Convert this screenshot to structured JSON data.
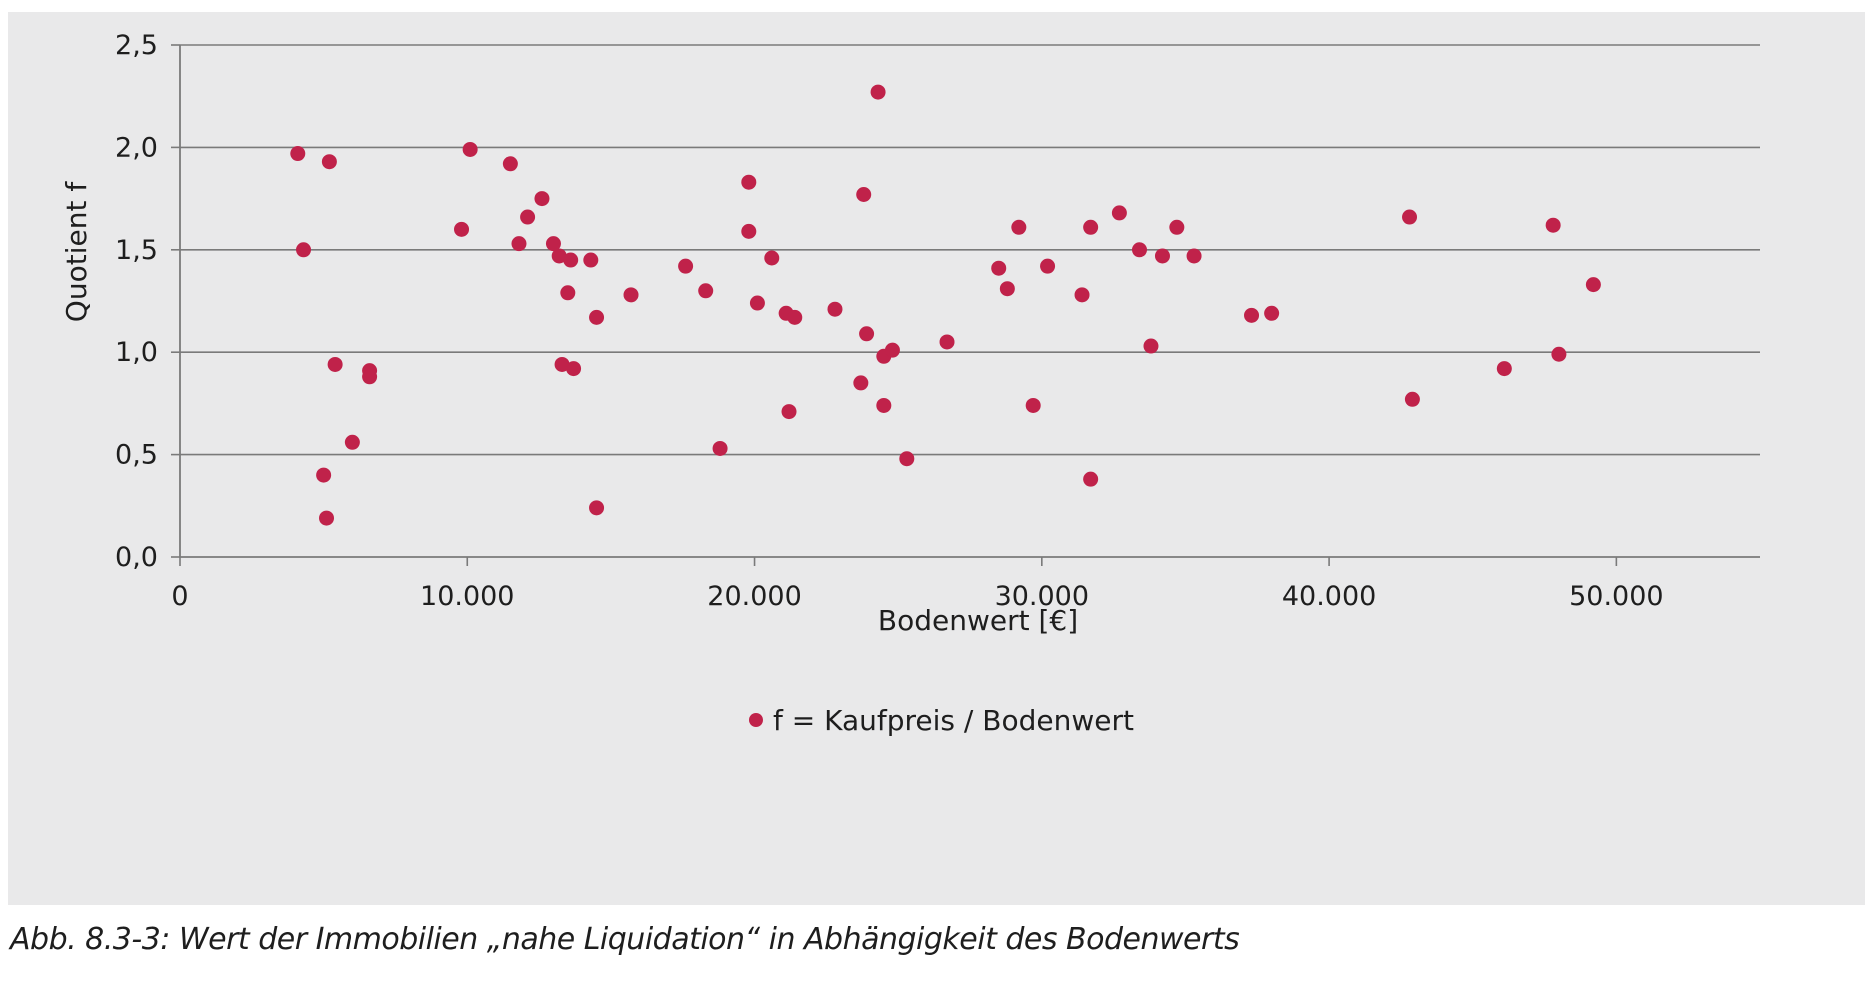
{
  "caption": "Abb. 8.3-3: Wert der Immobilien „nahe Liquidation“ in Abhängigkeit des Bodenwerts",
  "colors": {
    "marker": "#c0224a",
    "gridline": "#7a7a7a",
    "background": "#e9e9ea"
  },
  "chart_data": {
    "type": "scatter",
    "xlabel": "Bodenwert [€]",
    "ylabel": "Quotient f",
    "xlim": [
      0,
      55000
    ],
    "ylim": [
      0,
      2.5
    ],
    "x_ticks": [
      0,
      10000,
      20000,
      30000,
      40000,
      50000
    ],
    "x_tick_labels": [
      "0",
      "10.000",
      "20.000",
      "30.000",
      "40.000",
      "50.000"
    ],
    "y_ticks": [
      0,
      0.5,
      1.0,
      1.5,
      2.0,
      2.5
    ],
    "y_tick_labels": [
      "0,0",
      "0,5",
      "1,0",
      "1,5",
      "2,0",
      "2,5"
    ],
    "grid": "horizontal",
    "legend_position": "bottom-center",
    "series": [
      {
        "name": "f = Kaufpreis / Bodenwert",
        "points": [
          [
            4100,
            1.97
          ],
          [
            4300,
            1.5
          ],
          [
            5000,
            0.4
          ],
          [
            5100,
            0.19
          ],
          [
            5200,
            1.93
          ],
          [
            5400,
            0.94
          ],
          [
            6000,
            0.56
          ],
          [
            6600,
            0.88
          ],
          [
            6600,
            0.91
          ],
          [
            9800,
            1.6
          ],
          [
            10100,
            1.99
          ],
          [
            11500,
            1.92
          ],
          [
            11800,
            1.53
          ],
          [
            12100,
            1.66
          ],
          [
            12600,
            1.75
          ],
          [
            13000,
            1.53
          ],
          [
            13200,
            1.47
          ],
          [
            13300,
            0.94
          ],
          [
            13500,
            1.29
          ],
          [
            13600,
            1.45
          ],
          [
            13700,
            0.92
          ],
          [
            14300,
            1.45
          ],
          [
            14500,
            0.24
          ],
          [
            14500,
            1.17
          ],
          [
            15700,
            1.28
          ],
          [
            17600,
            1.42
          ],
          [
            18300,
            1.3
          ],
          [
            18800,
            0.53
          ],
          [
            19800,
            1.83
          ],
          [
            19800,
            1.59
          ],
          [
            20100,
            1.24
          ],
          [
            20600,
            1.46
          ],
          [
            21100,
            1.19
          ],
          [
            21200,
            0.71
          ],
          [
            21400,
            1.17
          ],
          [
            22800,
            1.21
          ],
          [
            23700,
            0.85
          ],
          [
            23800,
            1.77
          ],
          [
            23900,
            1.09
          ],
          [
            24300,
            2.27
          ],
          [
            24500,
            0.98
          ],
          [
            24500,
            0.74
          ],
          [
            24800,
            1.01
          ],
          [
            25300,
            0.48
          ],
          [
            26700,
            1.05
          ],
          [
            28500,
            1.41
          ],
          [
            28800,
            1.31
          ],
          [
            29200,
            1.61
          ],
          [
            29700,
            0.74
          ],
          [
            30200,
            1.42
          ],
          [
            31400,
            1.28
          ],
          [
            31700,
            1.61
          ],
          [
            31700,
            0.38
          ],
          [
            32700,
            1.68
          ],
          [
            33400,
            1.5
          ],
          [
            33800,
            1.03
          ],
          [
            34200,
            1.47
          ],
          [
            34700,
            1.61
          ],
          [
            35300,
            1.47
          ],
          [
            37300,
            1.18
          ],
          [
            38000,
            1.19
          ],
          [
            42800,
            1.66
          ],
          [
            42900,
            0.77
          ],
          [
            46100,
            0.92
          ],
          [
            47800,
            1.62
          ],
          [
            48000,
            0.99
          ],
          [
            49200,
            1.33
          ]
        ]
      }
    ]
  }
}
